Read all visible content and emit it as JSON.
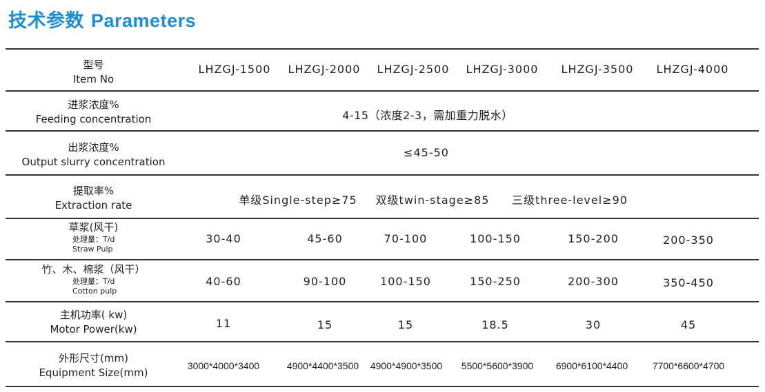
{
  "title": {
    "zh": "技术参数",
    "en": "Parameters",
    "color": "#1a8fd6"
  },
  "rows": [
    {
      "label_zh": "型号",
      "label_en": "Item No",
      "values": [
        "LHZGJ-1500",
        "LHZGJ-2000",
        "LHZGJ-2500",
        "LHZGJ-3000",
        "LHZGJ-3500",
        "LHZGJ-4000"
      ]
    },
    {
      "label_zh": "进浆浓度%",
      "label_en": "Feeding concentration",
      "value": "4-15（浓度2-3，需加重力脱水）"
    },
    {
      "label_zh": "出浆浓度%",
      "label_en": "Output slurry concentration",
      "value": "≤45-50"
    },
    {
      "label_zh": "提取率%",
      "label_en": "Extraction rate",
      "values": [
        "单级Single-step≥75",
        "双级twin-stage≥85",
        "三级three-level≥90"
      ]
    },
    {
      "label_zh": "草浆(风干)",
      "unit": "处理量：T/d",
      "label_en": "Straw Pulp",
      "values": [
        "30-40",
        "45-60",
        "70-100",
        "100-150",
        "150-200",
        "200-350"
      ]
    },
    {
      "label_zh": "竹、木、棉浆（风干）",
      "unit": "处理量：T/d",
      "label_en": "Cotton pulp",
      "values": [
        "40-60",
        "90-100",
        "100-150",
        "150-250",
        "200-300",
        "350-450"
      ]
    },
    {
      "label_zh": "主机功率( kw)",
      "label_en": "Motor Power(kw)",
      "values": [
        "11",
        "15",
        "15",
        "18.5",
        "30",
        "45"
      ]
    },
    {
      "label_zh": "外形尺寸(mm)",
      "label_en": "Equipment Size(mm)",
      "values": [
        "3000*4000*3400",
        "4900*4400*3500",
        "4900*4900*3500",
        "5500*5600*3900",
        "6900*6100*4400",
        "7700*6600*4700"
      ]
    }
  ]
}
